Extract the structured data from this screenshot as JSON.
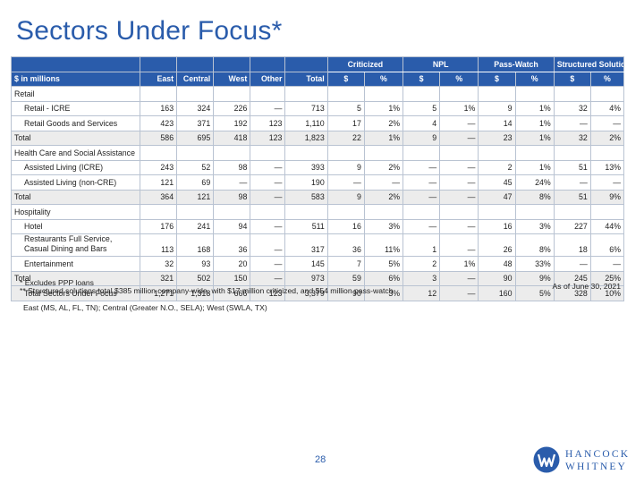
{
  "page": {
    "title": "Sectors Under Focus*",
    "page_number": "28",
    "as_of": "As of June 30, 2021"
  },
  "table": {
    "group_headers": [
      "Criticized",
      "NPL",
      "Pass-Watch",
      "Structured Solutions**"
    ],
    "columns": [
      "$ in millions",
      "East",
      "Central",
      "West",
      "Other",
      "Total",
      "$",
      "%",
      "$",
      "%",
      "$",
      "%",
      "$",
      "%"
    ],
    "rows": [
      {
        "type": "section",
        "label": "Retail"
      },
      {
        "type": "sub",
        "label": "Retail - ICRE",
        "values": [
          "163",
          "324",
          "226",
          "—",
          "713",
          "5",
          "1%",
          "5",
          "1%",
          "9",
          "1%",
          "32",
          "4%"
        ]
      },
      {
        "type": "sub",
        "label": "Retail Goods and Services",
        "values": [
          "423",
          "371",
          "192",
          "123",
          "1,110",
          "17",
          "2%",
          "4",
          "—",
          "14",
          "1%",
          "—",
          "—"
        ]
      },
      {
        "type": "total",
        "label": "Total",
        "values": [
          "586",
          "695",
          "418",
          "123",
          "1,823",
          "22",
          "1%",
          "9",
          "—",
          "23",
          "1%",
          "32",
          "2%"
        ]
      },
      {
        "type": "section",
        "label": "Health Care and Social Assistance"
      },
      {
        "type": "sub",
        "label": "Assisted Living (ICRE)",
        "values": [
          "243",
          "52",
          "98",
          "—",
          "393",
          "9",
          "2%",
          "—",
          "—",
          "2",
          "1%",
          "51",
          "13%"
        ]
      },
      {
        "type": "sub",
        "label": "Assisted Living (non-CRE)",
        "values": [
          "121",
          "69",
          "—",
          "—",
          "190",
          "—",
          "—",
          "—",
          "—",
          "45",
          "24%",
          "—",
          "—"
        ]
      },
      {
        "type": "total",
        "label": "Total",
        "values": [
          "364",
          "121",
          "98",
          "—",
          "583",
          "9",
          "2%",
          "—",
          "—",
          "47",
          "8%",
          "51",
          "9%"
        ]
      },
      {
        "type": "section",
        "label": "Hospitality"
      },
      {
        "type": "sub",
        "label": "Hotel",
        "values": [
          "176",
          "241",
          "94",
          "—",
          "511",
          "16",
          "3%",
          "—",
          "—",
          "16",
          "3%",
          "227",
          "44%"
        ]
      },
      {
        "type": "sub-tall",
        "label": "Restaurants Full Service, Casual Dining and Bars",
        "values": [
          "113",
          "168",
          "36",
          "—",
          "317",
          "36",
          "11%",
          "1",
          "—",
          "26",
          "8%",
          "18",
          "6%"
        ]
      },
      {
        "type": "sub",
        "label": "Entertainment",
        "values": [
          "32",
          "93",
          "20",
          "—",
          "145",
          "7",
          "5%",
          "2",
          "1%",
          "48",
          "33%",
          "—",
          "—"
        ]
      },
      {
        "type": "total",
        "label": "Total",
        "values": [
          "321",
          "502",
          "150",
          "—",
          "973",
          "59",
          "6%",
          "3",
          "—",
          "90",
          "9%",
          "245",
          "25%"
        ]
      },
      {
        "type": "gtotal",
        "label": "Total Sectors Under Focus",
        "values": [
          "1,271",
          "1,318",
          "666",
          "123",
          "3,379",
          "90",
          "3%",
          "12",
          "—",
          "160",
          "5%",
          "328",
          "10%"
        ]
      }
    ]
  },
  "footnotes": {
    "note1": "*   Excludes PPP loans",
    "note2": "** Structured solutions total $385 million company-wide, with $17 million criticized, and $54 million pass-watch",
    "regions": "East (MS, AL, FL, TN); Central (Greater N.O., SELA); West (SWLA, TX)"
  },
  "logo": {
    "line1": "HANCOCK",
    "line2": "WHITNEY",
    "icon": "hancock-whitney-w-mark",
    "color": "#2a5cab"
  },
  "colors": {
    "accent": "#2a5cab",
    "total_row_bg": "#ececec"
  }
}
